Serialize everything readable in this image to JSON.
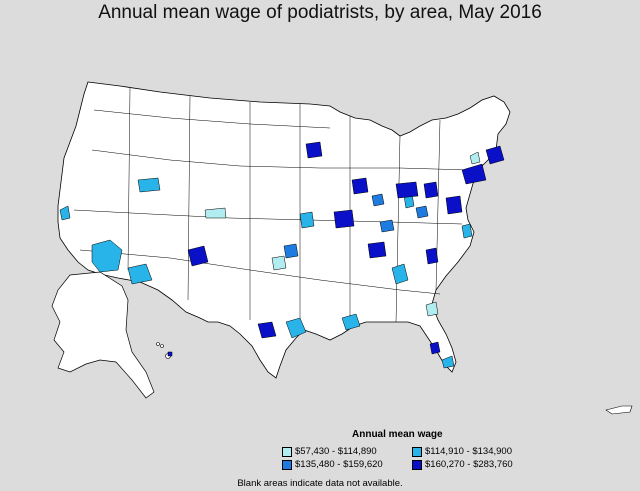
{
  "title": "Annual mean wage of podiatrists, by area, May 2016",
  "legend": {
    "title": "Annual mean wage",
    "items": [
      {
        "label": "$57,430 - $114,890",
        "color": "#b0ecf0"
      },
      {
        "label": "$114,910 - $134,900",
        "color": "#28b4e8"
      },
      {
        "label": "$135,480 - $159,620",
        "color": "#1e7be0"
      },
      {
        "label": "$160,270 - $283,760",
        "color": "#0a10c8"
      }
    ]
  },
  "note": "Blank areas indicate data not available.",
  "colors": {
    "background": "#dcdcdc",
    "land": "#ffffff",
    "border": "#000000"
  }
}
